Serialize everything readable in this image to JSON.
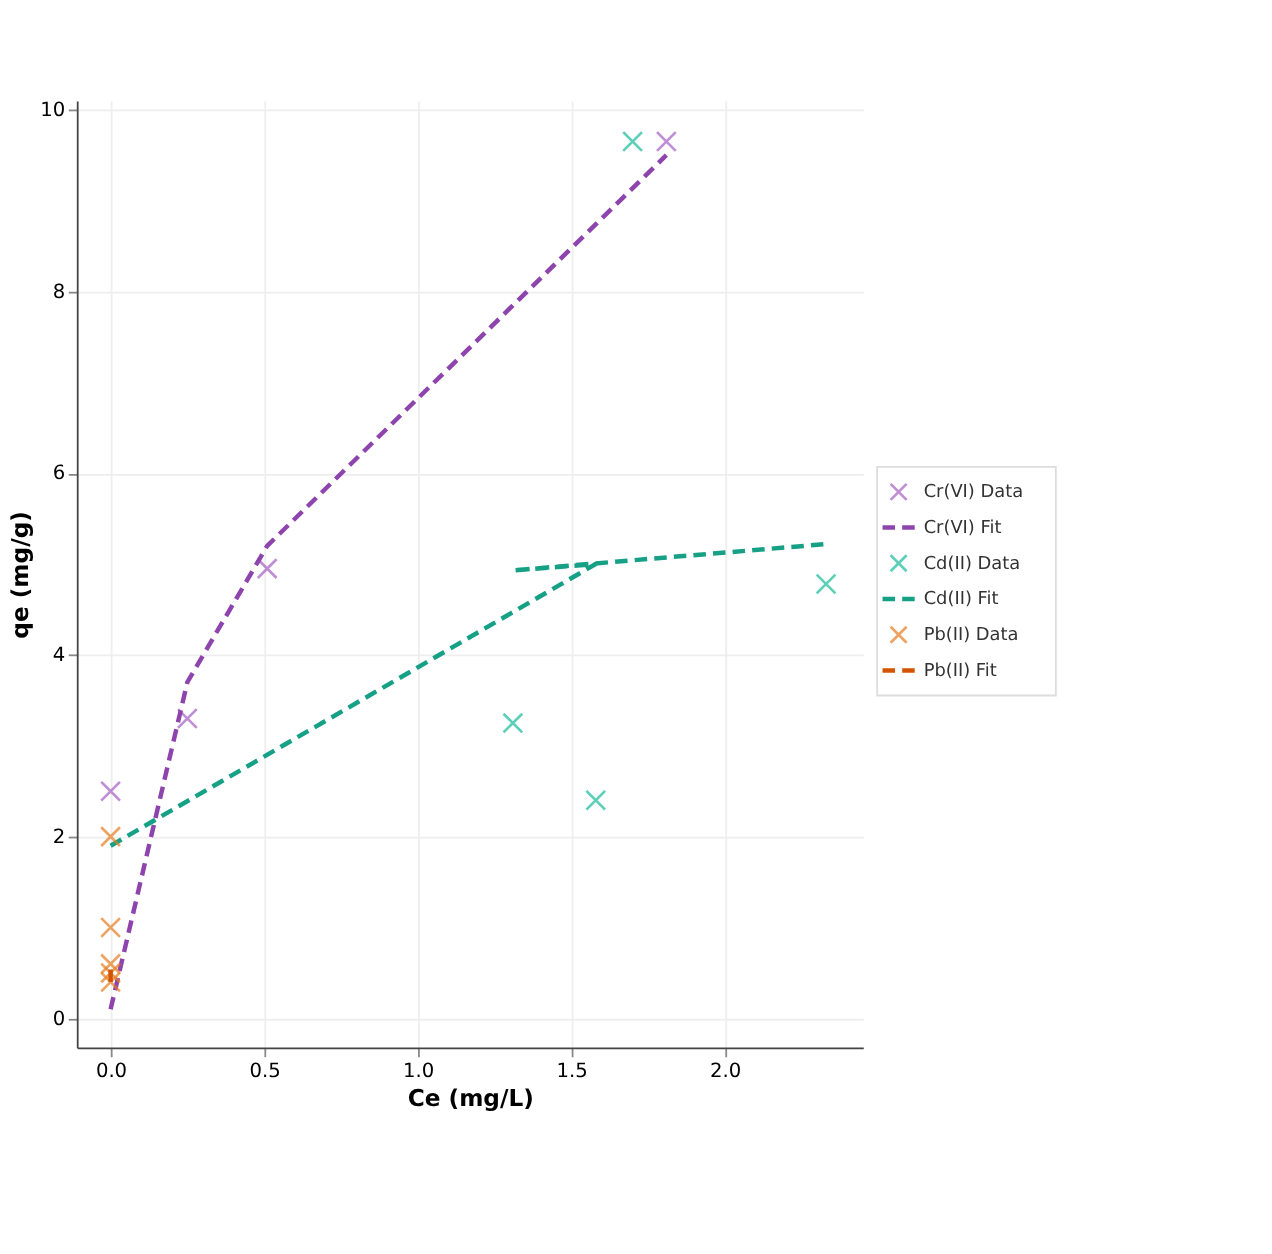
{
  "chart_data": {
    "type": "scatter",
    "xlabel": "Ce (mg/L)",
    "ylabel": "qe (mg/g)",
    "xlim": [
      -0.11,
      2.45
    ],
    "ylim": [
      -0.32,
      10.1
    ],
    "xticks": [
      {
        "value": 0,
        "label": "0.0"
      },
      0.5,
      {
        "value": 1,
        "label": "1.0"
      },
      1.5,
      {
        "value": 2,
        "label": "2.0"
      }
    ],
    "yticks": [
      0,
      2,
      4,
      6,
      8,
      10
    ],
    "grid": true,
    "legend": "right",
    "series": [
      {
        "name": "Cr(VI) Data",
        "marker": "cross",
        "color": "#a45fc4",
        "x": [
          0,
          0.25,
          0.51,
          1.81
        ],
        "values": [
          2.5,
          3.3,
          4.95,
          9.65
        ]
      },
      {
        "name": "Cr(VI) Fit",
        "type": "line",
        "marker": "none",
        "line_style": "dashed",
        "color": "#8e44ad",
        "x": [
          0,
          0.25,
          0.51,
          1.81
        ],
        "values": [
          0.1,
          3.7,
          5.2,
          9.5
        ]
      },
      {
        "name": "Cd(II) Data",
        "marker": "cross",
        "color": "#1abc9c",
        "x": [
          1.7,
          1.31,
          1.58,
          2.33
        ],
        "values": [
          9.65,
          3.25,
          2.4,
          4.78
        ]
      },
      {
        "name": "Cd(II) Fit",
        "type": "line",
        "marker": "none",
        "line_style": "dashed",
        "color": "#16a085",
        "x": [
          0,
          1.58,
          1.31,
          2.33
        ],
        "values": [
          1.9,
          5.0,
          4.93,
          5.22
        ]
      },
      {
        "name": "Pb(II) Data",
        "marker": "cross",
        "color": "#e67e22",
        "x": [
          0,
          0,
          0,
          0,
          0
        ],
        "values": [
          2.0,
          1.0,
          0.6,
          0.5,
          0.4
        ]
      },
      {
        "name": "Pb(II) Fit",
        "type": "line",
        "marker": "none",
        "line_style": "dashed",
        "color": "#d35400",
        "x": [
          0,
          0
        ],
        "values": [
          0.4,
          0.6
        ]
      }
    ]
  }
}
